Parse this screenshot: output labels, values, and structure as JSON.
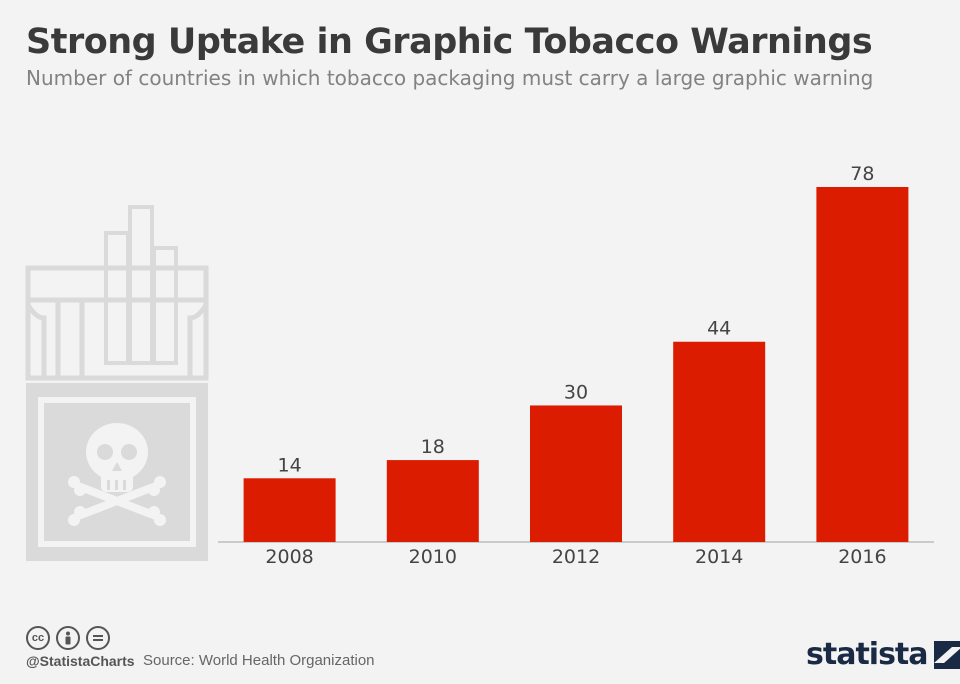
{
  "header": {
    "title": "Strong Uptake in Graphic Tobacco Warnings",
    "subtitle": "Number of countries in which tobacco packaging must carry a large graphic warning"
  },
  "chart_data": {
    "type": "bar",
    "categories": [
      "2008",
      "2010",
      "2012",
      "2014",
      "2016"
    ],
    "values": [
      14,
      18,
      30,
      44,
      78
    ],
    "ylim": [
      0,
      78
    ],
    "grid": false,
    "bar_color": "#dc1c00"
  },
  "footer": {
    "handle": "@StatistaCharts",
    "source": "Source: World Health Organization",
    "brand": "statista",
    "license_icons": [
      "cc",
      "by",
      "nd"
    ]
  },
  "illustration": {
    "icon": "cigarette-pack-with-skull-icon",
    "color": "#dadada"
  }
}
